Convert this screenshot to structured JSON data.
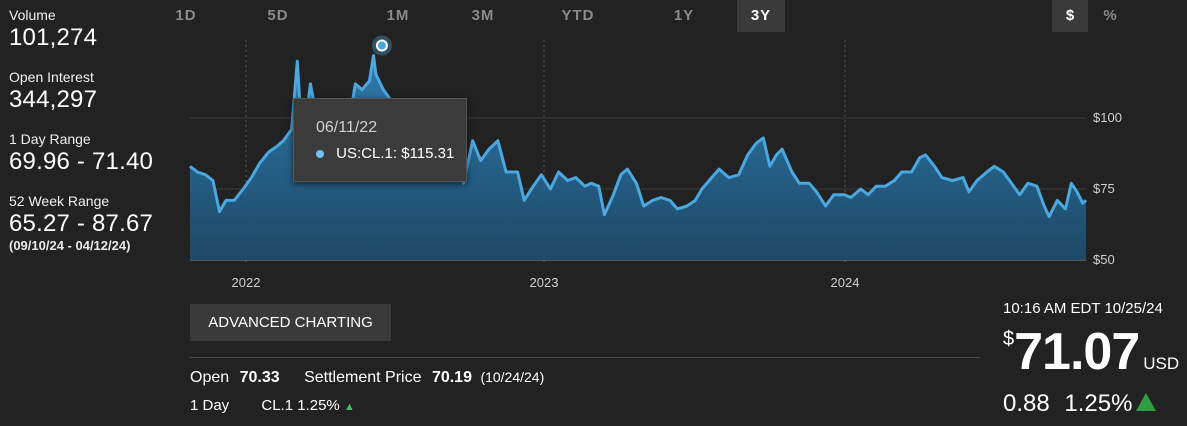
{
  "stats": [
    {
      "label": "Volume",
      "value": "101,274"
    },
    {
      "label": "Open Interest",
      "value": "344,297"
    },
    {
      "label": "1 Day Range",
      "value": "69.96 - 71.40"
    },
    {
      "label": "52 Week Range",
      "value": "65.27 - 87.67",
      "sub": "(09/10/24 - 04/12/24)"
    }
  ],
  "ranges": [
    "1D",
    "5D",
    "1M",
    "3M",
    "YTD",
    "1Y",
    "3Y"
  ],
  "active_range": "3Y",
  "units": {
    "dollar": "$",
    "percent": "%"
  },
  "tooltip": {
    "date": "06/11/22",
    "series": "US:CL.1:",
    "value": "$115.31"
  },
  "advanced_label": "ADVANCED CHARTING",
  "settlement": {
    "open_label": "Open",
    "open_value": "70.33",
    "settle_label": "Settlement Price",
    "settle_value": "70.19",
    "settle_date": "(10/24/24)"
  },
  "day_row": {
    "label": "1 Day",
    "symbol": "CL.1",
    "change": "1.25%"
  },
  "quote": {
    "time": "10:16 AM EDT 10/25/24",
    "currency_symbol": "$",
    "price": "71.07",
    "currency": "USD",
    "change": "0.88",
    "change_pct": "1.25%"
  },
  "colors": {
    "line": "#4aa8e0",
    "up": "#2e9e44",
    "background": "#222222"
  },
  "chart_data": {
    "type": "area",
    "x_ticks": [
      "2022",
      "2023",
      "2024"
    ],
    "y_ticks": [
      "$100",
      "$75",
      "$50"
    ],
    "y_tick_values": [
      100,
      75,
      50
    ],
    "ylim": [
      50,
      125
    ],
    "xlim": [
      "2021-10-27",
      "2024-10-25"
    ],
    "highlight": {
      "date": "2022-06-11",
      "value": 115.31
    },
    "series": [
      {
        "values": [
          [
            "2021-10-27",
            83
          ],
          [
            "2021-11-05",
            81
          ],
          [
            "2021-11-15",
            80
          ],
          [
            "2021-11-24",
            78
          ],
          [
            "2021-12-02",
            67
          ],
          [
            "2021-12-10",
            71
          ],
          [
            "2021-12-20",
            71
          ],
          [
            "2021-12-31",
            75
          ],
          [
            "2022-01-10",
            79
          ],
          [
            "2022-01-20",
            84
          ],
          [
            "2022-01-31",
            88
          ],
          [
            "2022-02-10",
            90
          ],
          [
            "2022-02-18",
            92
          ],
          [
            "2022-02-28",
            96
          ],
          [
            "2022-03-07",
            120
          ],
          [
            "2022-03-10",
            106
          ],
          [
            "2022-03-16",
            96
          ],
          [
            "2022-03-23",
            112
          ],
          [
            "2022-03-31",
            100
          ],
          [
            "2022-04-11",
            95
          ],
          [
            "2022-04-20",
            102
          ],
          [
            "2022-04-29",
            104
          ],
          [
            "2022-05-10",
            100
          ],
          [
            "2022-05-17",
            112
          ],
          [
            "2022-05-25",
            110
          ],
          [
            "2022-06-03",
            113
          ],
          [
            "2022-06-08",
            122
          ],
          [
            "2022-06-11",
            115.31
          ],
          [
            "2022-06-20",
            110
          ],
          [
            "2022-06-30",
            106
          ],
          [
            "2022-07-08",
            104
          ],
          [
            "2022-07-15",
            97
          ],
          [
            "2022-07-29",
            98
          ],
          [
            "2022-08-05",
            89
          ],
          [
            "2022-08-16",
            86
          ],
          [
            "2022-08-26",
            93
          ],
          [
            "2022-09-06",
            87
          ],
          [
            "2022-09-16",
            84
          ],
          [
            "2022-09-26",
            77
          ],
          [
            "2022-10-07",
            92
          ],
          [
            "2022-10-17",
            85
          ],
          [
            "2022-10-27",
            89
          ],
          [
            "2022-11-07",
            92
          ],
          [
            "2022-11-17",
            81
          ],
          [
            "2022-12-01",
            81
          ],
          [
            "2022-12-09",
            71
          ],
          [
            "2022-12-20",
            76
          ],
          [
            "2022-12-30",
            80
          ],
          [
            "2023-01-10",
            75
          ],
          [
            "2023-01-20",
            81
          ],
          [
            "2023-01-31",
            78
          ],
          [
            "2023-02-10",
            79
          ],
          [
            "2023-02-21",
            76
          ],
          [
            "2023-03-01",
            77
          ],
          [
            "2023-03-10",
            76
          ],
          [
            "2023-03-17",
            66
          ],
          [
            "2023-03-28",
            73
          ],
          [
            "2023-04-06",
            80
          ],
          [
            "2023-04-14",
            82
          ],
          [
            "2023-04-25",
            77
          ],
          [
            "2023-05-04",
            69
          ],
          [
            "2023-05-15",
            71
          ],
          [
            "2023-05-25",
            72
          ],
          [
            "2023-06-05",
            71
          ],
          [
            "2023-06-14",
            68
          ],
          [
            "2023-06-26",
            69
          ],
          [
            "2023-07-06",
            71
          ],
          [
            "2023-07-14",
            75
          ],
          [
            "2023-07-26",
            79
          ],
          [
            "2023-08-04",
            82
          ],
          [
            "2023-08-16",
            79
          ],
          [
            "2023-08-28",
            80
          ],
          [
            "2023-09-08",
            87
          ],
          [
            "2023-09-18",
            91
          ],
          [
            "2023-09-27",
            93
          ],
          [
            "2023-10-05",
            83
          ],
          [
            "2023-10-13",
            87
          ],
          [
            "2023-10-20",
            89
          ],
          [
            "2023-11-01",
            81
          ],
          [
            "2023-11-10",
            77
          ],
          [
            "2023-11-22",
            77
          ],
          [
            "2023-12-01",
            74
          ],
          [
            "2023-12-12",
            69
          ],
          [
            "2023-12-22",
            73
          ],
          [
            "2024-01-04",
            73
          ],
          [
            "2024-01-12",
            72
          ],
          [
            "2024-01-24",
            75
          ],
          [
            "2024-02-02",
            73
          ],
          [
            "2024-02-12",
            76
          ],
          [
            "2024-02-23",
            76
          ],
          [
            "2024-03-05",
            78
          ],
          [
            "2024-03-14",
            81
          ],
          [
            "2024-03-26",
            81
          ],
          [
            "2024-04-05",
            86
          ],
          [
            "2024-04-12",
            87
          ],
          [
            "2024-04-23",
            83
          ],
          [
            "2024-05-02",
            79
          ],
          [
            "2024-05-15",
            78
          ],
          [
            "2024-05-28",
            79
          ],
          [
            "2024-06-04",
            74
          ],
          [
            "2024-06-14",
            78
          ],
          [
            "2024-06-26",
            81
          ],
          [
            "2024-07-05",
            83
          ],
          [
            "2024-07-16",
            81
          ],
          [
            "2024-07-26",
            77
          ],
          [
            "2024-08-05",
            73
          ],
          [
            "2024-08-15",
            77
          ],
          [
            "2024-08-26",
            76
          ],
          [
            "2024-09-04",
            69
          ],
          [
            "2024-09-10",
            65.27
          ],
          [
            "2024-09-20",
            71
          ],
          [
            "2024-09-30",
            68
          ],
          [
            "2024-10-07",
            77
          ],
          [
            "2024-10-14",
            74
          ],
          [
            "2024-10-21",
            70
          ],
          [
            "2024-10-25",
            71.07
          ]
        ]
      }
    ]
  }
}
